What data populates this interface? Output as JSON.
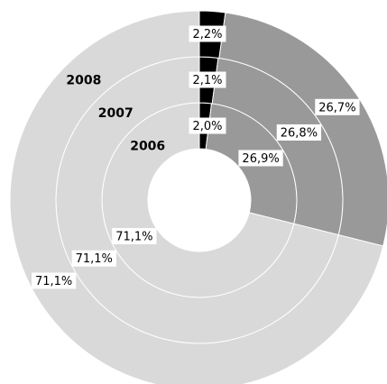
{
  "chart_data": {
    "type": "donut",
    "colors": [
      "#000000",
      "#999999",
      "#d9d9d9"
    ],
    "series": [
      {
        "name": "2006",
        "values": [
          2.0,
          26.9,
          71.1
        ],
        "value_labels": [
          "2,0%",
          "26,9%",
          "71,1%"
        ]
      },
      {
        "name": "2007",
        "values": [
          2.1,
          26.8,
          71.1
        ],
        "value_labels": [
          "2,1%",
          "26,8%",
          "71,1%"
        ]
      },
      {
        "name": "2008",
        "values": [
          2.2,
          26.7,
          71.1
        ],
        "value_labels": [
          "2,2%",
          "26,7%",
          "71,1%"
        ]
      }
    ]
  }
}
